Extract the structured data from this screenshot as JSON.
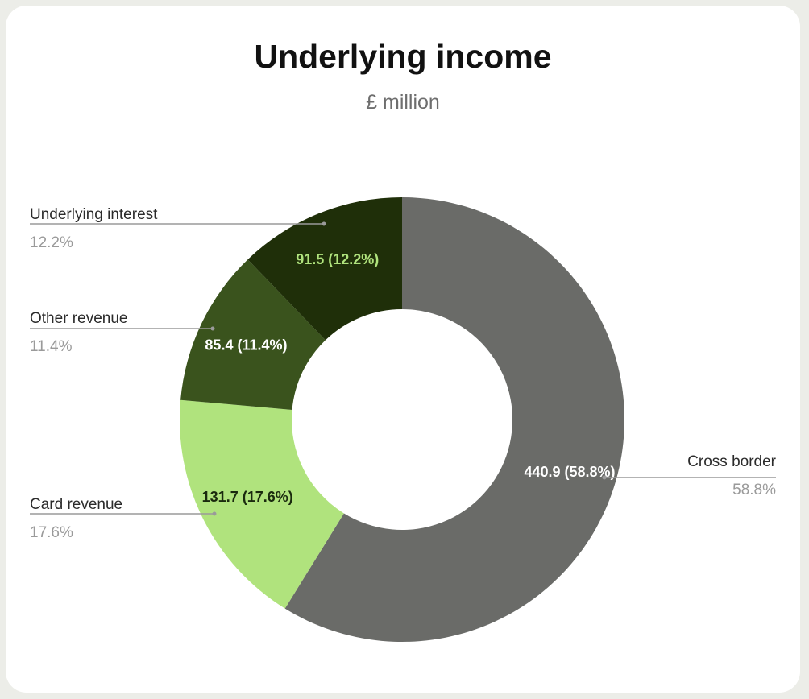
{
  "chart_data": {
    "type": "pie",
    "donut": true,
    "title": "Underlying income",
    "subtitle": "£ million",
    "slices": [
      {
        "label": "Cross border",
        "value": 440.9,
        "percent": "58.8%",
        "data_label": "440.9 (58.8%)",
        "color": "#6a6b68",
        "label_color": "#ffffff"
      },
      {
        "label": "Card revenue",
        "value": 131.7,
        "percent": "17.6%",
        "data_label": "131.7  (17.6%)",
        "color": "#b0e37d",
        "label_color": "#1a2a0e"
      },
      {
        "label": "Other revenue",
        "value": 85.4,
        "percent": "11.4%",
        "data_label": "85.4  (11.4%)",
        "color": "#3a531d",
        "label_color": "#ffffff"
      },
      {
        "label": "Underlying interest",
        "value": 91.5,
        "percent": "12.2%",
        "data_label": "91.5 (12.2%)",
        "color": "#1f2f09",
        "label_color": "#b0e37d"
      }
    ],
    "legend": "callouts"
  }
}
